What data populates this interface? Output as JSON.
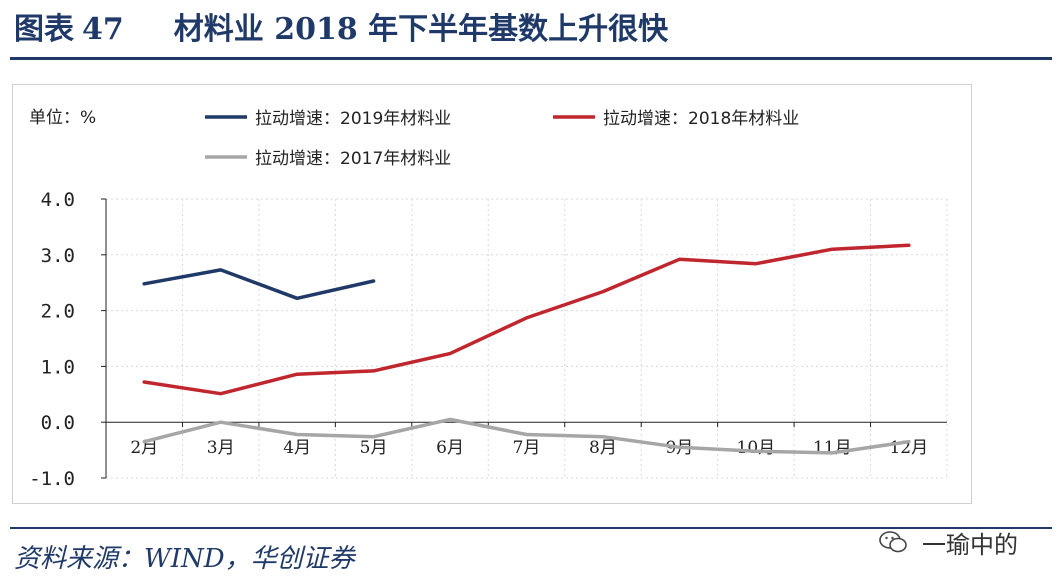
{
  "header": {
    "figure_label": "图表",
    "figure_number": "47",
    "title": "材料业 2018 年下半年基数上升很快"
  },
  "footer": {
    "source": "资料来源：WIND，华创证券",
    "watermark": "一瑜中的",
    "watermark_icon": "wechat-icon"
  },
  "chart_data": {
    "type": "line",
    "unit_label": "单位：%",
    "categories": [
      "2月",
      "3月",
      "4月",
      "5月",
      "6月",
      "7月",
      "8月",
      "9月",
      "10月",
      "11月",
      "12月"
    ],
    "y_ticks": [
      "4.0",
      "3.0",
      "2.0",
      "1.0",
      "0.0",
      "-1.0"
    ],
    "ylim": [
      -1.0,
      4.0
    ],
    "grid": true,
    "legend_position": "top",
    "series": [
      {
        "name": "拉动增速：2019年材料业",
        "color": "#1f3a68",
        "values": [
          2.48,
          2.73,
          2.22,
          2.53,
          null,
          null,
          null,
          null,
          null,
          null,
          null
        ]
      },
      {
        "name": "拉动增速：2018年材料业",
        "color": "#c0262d",
        "values": [
          0.72,
          0.51,
          0.86,
          0.92,
          1.23,
          1.87,
          2.34,
          2.92,
          2.84,
          3.1,
          3.17
        ]
      },
      {
        "name": "拉动增速：2017年材料业",
        "color": "#a6a6a6",
        "values": [
          -0.35,
          0.0,
          -0.22,
          -0.26,
          0.05,
          -0.22,
          -0.26,
          -0.45,
          -0.52,
          -0.55,
          -0.35
        ]
      }
    ]
  }
}
